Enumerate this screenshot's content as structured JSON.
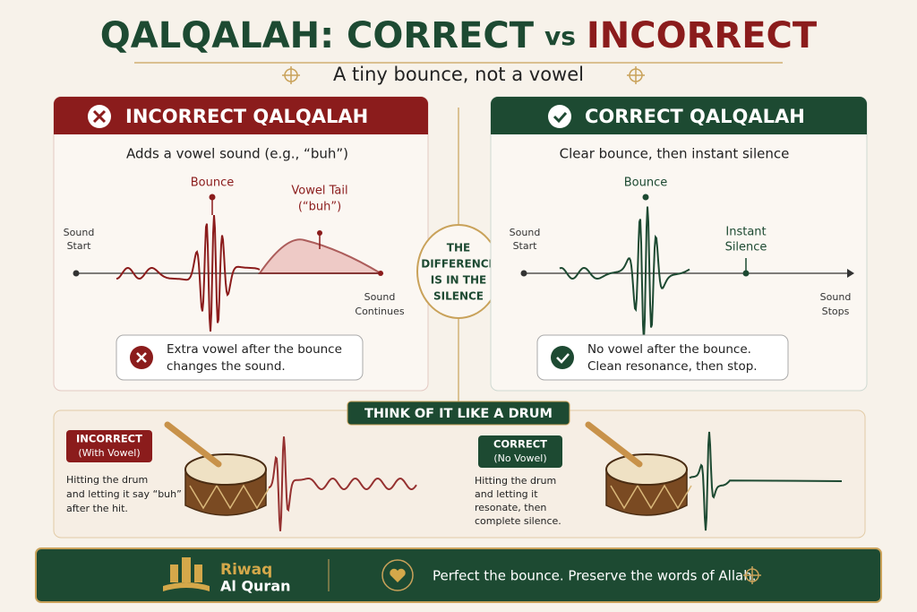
{
  "header": {
    "title": {
      "left": "QALQALAH: CORRECT",
      "middle": "vs",
      "right": "INCORRECT"
    },
    "subtitle": "A tiny bounce, not a vowel"
  },
  "incorrect_panel": {
    "title": "INCORRECT QALQALAH",
    "description": "Adds a vowel sound (e.g., “buh”)",
    "bounce_label": "Bounce",
    "tail_label": [
      "Vowel Tail",
      "(“buh”)"
    ],
    "start_label": [
      "Sound",
      "Start"
    ],
    "end_label": [
      "Sound",
      "Continues"
    ],
    "note": [
      "Extra vowel after the bounce",
      "changes the sound."
    ]
  },
  "center_badge": [
    "THE",
    "DIFFERENCE",
    "IS IN THE",
    "SILENCE"
  ],
  "correct_panel": {
    "title": "CORRECT QALQALAH",
    "description": "Clear bounce, then instant silence",
    "bounce_label": "Bounce",
    "start_label": [
      "Sound",
      "Start"
    ],
    "silence_label": [
      "Instant",
      "Silence"
    ],
    "end_label": [
      "Sound",
      "Stops"
    ],
    "note": [
      "No vowel after the bounce.",
      "Clean resonance, then stop."
    ]
  },
  "drum_section": {
    "title": "THINK OF IT LIKE A DRUM",
    "incorrect": {
      "badge": [
        "INCORRECT",
        "(With Vowel)"
      ],
      "text": [
        "Hitting the drum",
        "and letting it say “buh”",
        "after the hit."
      ]
    },
    "correct": {
      "badge": [
        "CORRECT",
        "(No Vowel)"
      ],
      "text": [
        "Hitting the drum",
        "and letting it",
        "resonate, then",
        "complete silence."
      ]
    }
  },
  "footer": {
    "brand": [
      "Riwaq",
      "Al Quran"
    ],
    "tagline": "Perfect the bounce. Preserve the words of Allah."
  }
}
